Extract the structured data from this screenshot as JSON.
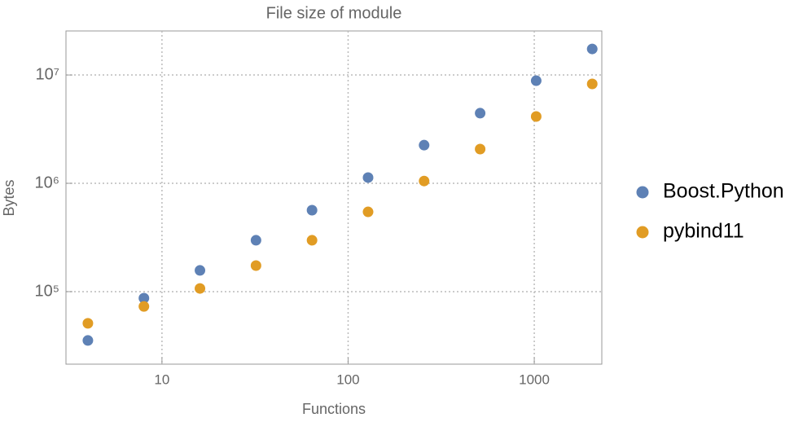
{
  "chart_data": {
    "type": "scatter",
    "title": "File size of module",
    "x_label": "Functions",
    "y_label": "Bytes",
    "x": [
      4,
      8,
      16,
      32,
      64,
      128,
      256,
      512,
      1024,
      2048
    ],
    "series": [
      {
        "name": "Boost.Python",
        "color": "#5e81b5",
        "values": [
          35400,
          87000,
          157000,
          298000,
          565000,
          1130000,
          2250000,
          4440000,
          8860000,
          17400000
        ]
      },
      {
        "name": "pybind11",
        "color": "#e19c24",
        "values": [
          51000,
          73000,
          107000,
          174000,
          298000,
          545000,
          1050000,
          2070000,
          4140000,
          8270000
        ]
      }
    ],
    "xlim": [
      3.05,
      2306
    ],
    "ylim": [
      21400,
      25500000
    ],
    "xticks": [
      10,
      100,
      1000
    ],
    "yticks": [
      {
        "value": 100000,
        "label": "10⁵"
      },
      {
        "value": 1000000,
        "label": "10⁶"
      },
      {
        "value": 10000000,
        "label": "10⁷"
      }
    ],
    "x_log": true,
    "y_log": true,
    "grid": true,
    "legend": "right"
  }
}
